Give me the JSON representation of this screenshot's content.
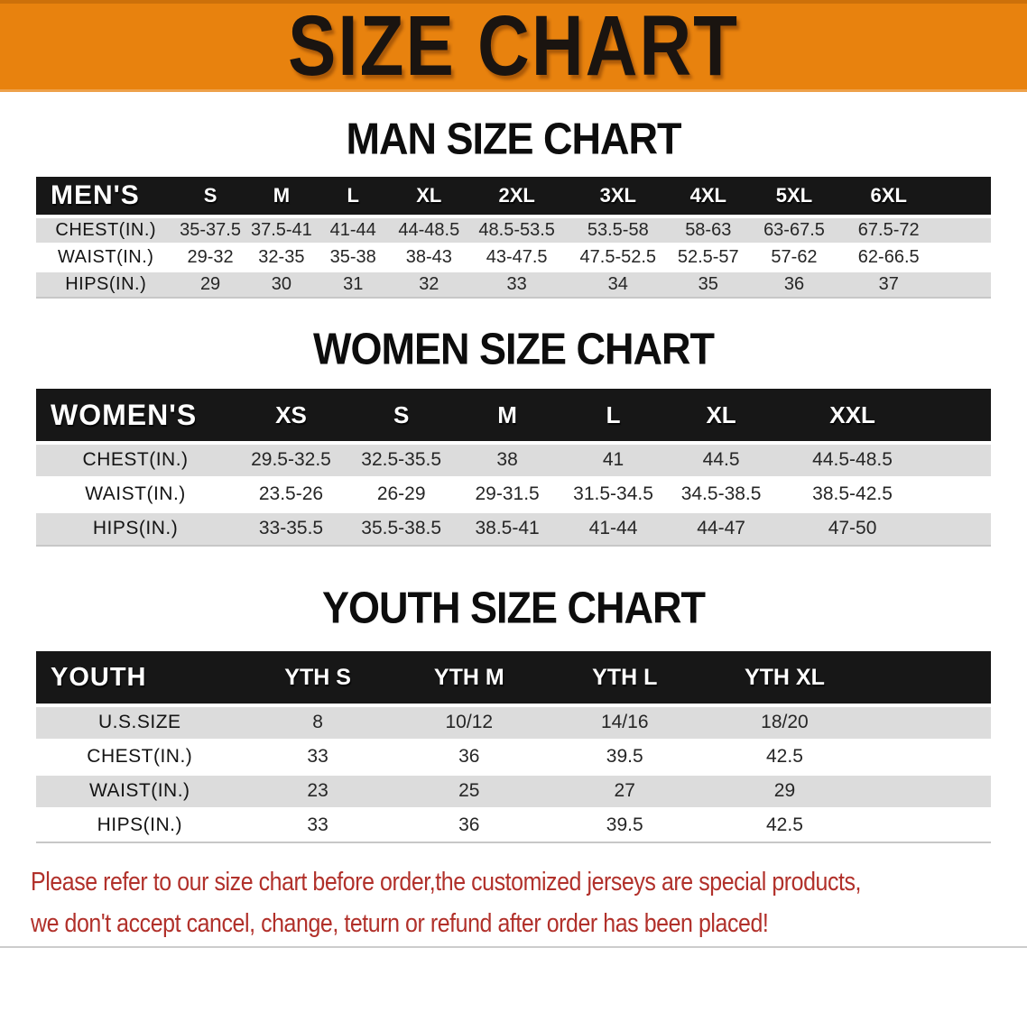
{
  "banner": {
    "title": "SIZE CHART",
    "bg_color": "#E8820E"
  },
  "sections": [
    {
      "id": "men",
      "heading": "MAN SIZE CHART",
      "table": {
        "header_label": "MEN'S",
        "columns": [
          "S",
          "M",
          "L",
          "XL",
          "2XL",
          "3XL",
          "4XL",
          "5XL",
          "6XL"
        ],
        "rows": [
          {
            "label": "CHEST(IN.)",
            "values": [
              "35-37.5",
              "37.5-41",
              "41-44",
              "44-48.5",
              "48.5-53.5",
              "53.5-58",
              "58-63",
              "63-67.5",
              "67.5-72"
            ]
          },
          {
            "label": "WAIST(IN.)",
            "values": [
              "29-32",
              "32-35",
              "35-38",
              "38-43",
              "43-47.5",
              "47.5-52.5",
              "52.5-57",
              "57-62",
              "62-66.5"
            ]
          },
          {
            "label": "HIPS(IN.)",
            "values": [
              "29",
              "30",
              "31",
              "32",
              "33",
              "34",
              "35",
              "36",
              "37"
            ]
          }
        ]
      }
    },
    {
      "id": "women",
      "heading": "WOMEN SIZE CHART",
      "table": {
        "header_label": "WOMEN'S",
        "columns": [
          "XS",
          "S",
          "M",
          "L",
          "XL",
          "XXL"
        ],
        "rows": [
          {
            "label": "CHEST(IN.)",
            "values": [
              "29.5-32.5",
              "32.5-35.5",
              "38",
              "41",
              "44.5",
              "44.5-48.5"
            ]
          },
          {
            "label": "WAIST(IN.)",
            "values": [
              "23.5-26",
              "26-29",
              "29-31.5",
              "31.5-34.5",
              "34.5-38.5",
              "38.5-42.5"
            ]
          },
          {
            "label": "HIPS(IN.)",
            "values": [
              "33-35.5",
              "35.5-38.5",
              "38.5-41",
              "41-44",
              "44-47",
              "47-50"
            ]
          }
        ]
      }
    },
    {
      "id": "youth",
      "heading": "YOUTH SIZE CHART",
      "table": {
        "header_label": "YOUTH",
        "columns": [
          "YTH S",
          "YTH M",
          "YTH L",
          "YTH XL"
        ],
        "rows": [
          {
            "label": "U.S.SIZE",
            "values": [
              "8",
              "10/12",
              "14/16",
              "18/20"
            ]
          },
          {
            "label": "CHEST(IN.)",
            "values": [
              "33",
              "36",
              "39.5",
              "42.5"
            ]
          },
          {
            "label": "WAIST(IN.)",
            "values": [
              "23",
              "25",
              "27",
              "29"
            ]
          },
          {
            "label": "HIPS(IN.)",
            "values": [
              "33",
              "36",
              "39.5",
              "42.5"
            ]
          }
        ]
      }
    }
  ],
  "footer": {
    "line1": "Please refer to our size chart before order,the customized jerseys are special products,",
    "line2": "we don't accept cancel, change, teturn or refund after order has been placed!",
    "text_color": "#B1302A"
  },
  "colors": {
    "header_bar": "#171717",
    "stripe": "#DCDCDC"
  }
}
